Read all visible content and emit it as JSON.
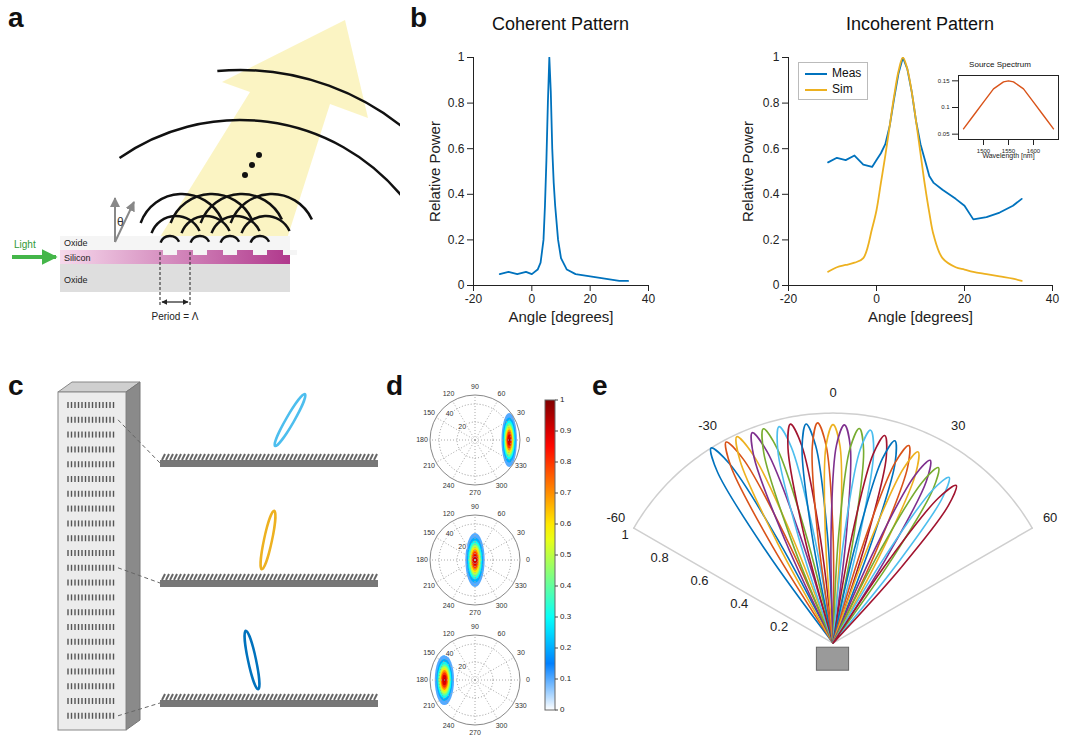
{
  "chart_data": [
    {
      "panel": "b",
      "type": "line",
      "title": "Coherent Pattern",
      "xlabel": "Angle [degrees]",
      "ylabel": "Relative Power",
      "xlim": [
        -20,
        40
      ],
      "xticks": [
        -20,
        0,
        20,
        40
      ],
      "ylim": [
        0,
        1
      ],
      "yticks": [
        0,
        0.2,
        0.4,
        0.6,
        0.8,
        1
      ],
      "x": [
        -11,
        -8,
        -5,
        -2,
        0,
        2,
        3,
        4,
        4.5,
        5,
        5.5,
        6,
        6.5,
        7,
        7.5,
        8,
        9,
        10,
        12,
        15,
        20,
        25,
        30,
        33
      ],
      "values": [
        0.05,
        0.06,
        0.05,
        0.06,
        0.05,
        0.07,
        0.1,
        0.2,
        0.35,
        0.55,
        0.8,
        1,
        0.85,
        0.6,
        0.45,
        0.35,
        0.2,
        0.12,
        0.07,
        0.05,
        0.04,
        0.03,
        0.02,
        0.02
      ],
      "color": "#0072BD"
    },
    {
      "type": "line",
      "title": "Incoherent Pattern",
      "xlabel": "Angle [degrees]",
      "ylabel": "Relative Power",
      "xlim": [
        -20,
        40
      ],
      "xticks": [
        -20,
        0,
        20,
        40
      ],
      "ylim": [
        0,
        1
      ],
      "yticks": [
        0,
        0.2,
        0.4,
        0.6,
        0.8,
        1
      ],
      "legend": "top-left",
      "x": [
        -11,
        -9,
        -7,
        -5,
        -3,
        -1,
        0,
        1,
        2,
        3,
        4,
        5,
        6,
        7,
        8,
        9,
        10,
        11,
        12,
        13,
        15,
        18,
        20,
        22,
        25,
        28,
        31,
        33
      ],
      "series": [
        {
          "name": "Meas",
          "color": "#0072BD",
          "values": [
            0.54,
            0.56,
            0.55,
            0.57,
            0.53,
            0.52,
            0.55,
            0.58,
            0.62,
            0.7,
            0.82,
            0.93,
            1,
            0.95,
            0.85,
            0.72,
            0.62,
            0.55,
            0.48,
            0.45,
            0.42,
            0.38,
            0.35,
            0.29,
            0.3,
            0.32,
            0.35,
            0.38
          ]
        },
        {
          "name": "Sim",
          "color": "#EDB120",
          "values": [
            0.06,
            0.08,
            0.09,
            0.1,
            0.12,
            0.25,
            0.33,
            0.45,
            0.57,
            0.7,
            0.83,
            0.94,
            1,
            0.95,
            0.85,
            0.72,
            0.58,
            0.44,
            0.32,
            0.22,
            0.12,
            0.08,
            0.07,
            0.06,
            0.05,
            0.04,
            0.03,
            0.02
          ]
        }
      ],
      "inset": {
        "type": "line",
        "title": "Source Spectrum",
        "xlabel": "Wavelength [nm]",
        "xlim": [
          1450,
          1650
        ],
        "xticks": [
          1500,
          1550,
          1600
        ],
        "ylim": [
          0.04,
          0.16
        ],
        "yticks": [
          0.05,
          0.1,
          0.15
        ],
        "x": [
          1460,
          1480,
          1500,
          1520,
          1540,
          1550,
          1560,
          1580,
          1600,
          1620,
          1640
        ],
        "values": [
          0.06,
          0.085,
          0.11,
          0.135,
          0.148,
          0.15,
          0.148,
          0.135,
          0.11,
          0.085,
          0.06
        ],
        "color": "#D95319"
      }
    },
    {
      "panel": "d",
      "type": "polar_heatmap",
      "rlim": [
        0,
        50
      ],
      "rticks": [
        20,
        40
      ],
      "thetaticks": [
        0,
        30,
        60,
        90,
        120,
        150,
        180,
        210,
        240,
        270,
        300,
        330
      ],
      "colorbar": {
        "range": [
          0,
          1
        ],
        "ticks": [
          0,
          0.1,
          0.2,
          0.3,
          0.4,
          0.5,
          0.6,
          0.7,
          0.8,
          0.9,
          1
        ]
      },
      "plots": [
        {
          "peak_theta": 0,
          "peak_r": 38,
          "peak_value": 1,
          "half_width_x": 4,
          "half_width_y": 14
        },
        {
          "peak_theta": 0,
          "peak_r": 0,
          "peak_value": 1,
          "half_width_x": 5,
          "half_width_y": 14
        },
        {
          "peak_theta": 180,
          "peak_r": 34,
          "peak_value": 1,
          "half_width_x": 5,
          "half_width_y": 13
        }
      ]
    },
    {
      "panel": "e",
      "type": "polar_line",
      "thetalim": [
        -60,
        60
      ],
      "thetaticks": [
        -60,
        -30,
        0,
        30,
        60
      ],
      "rlim": [
        0,
        1
      ],
      "rticks": [
        0.2,
        0.4,
        0.6,
        0.8,
        1
      ],
      "series": [
        {
          "color": "#0072BD",
          "theta": [
            -38,
            -36,
            -34,
            -32,
            -30,
            -28,
            -26
          ],
          "r": [
            0,
            0.5,
            0.9,
            1,
            0.9,
            0.5,
            0
          ]
        },
        {
          "color": "#D95319",
          "theta": [
            -34,
            -32,
            -30,
            -28,
            -26,
            -24,
            -22
          ],
          "r": [
            0,
            0.5,
            0.89,
            0.99,
            0.89,
            0.5,
            0
          ]
        },
        {
          "color": "#EDB120",
          "theta": [
            -31,
            -29,
            -27,
            -25,
            -23,
            -21,
            -19
          ],
          "r": [
            0,
            0.5,
            0.89,
            0.99,
            0.89,
            0.5,
            0
          ]
        },
        {
          "color": "#7E2F8E",
          "theta": [
            -27,
            -25,
            -23,
            -21,
            -19,
            -17,
            -15
          ],
          "r": [
            0,
            0.49,
            0.88,
            0.98,
            0.88,
            0.49,
            0
          ]
        },
        {
          "color": "#77AC30",
          "theta": [
            -24,
            -22,
            -20,
            -18,
            -16,
            -14,
            -12
          ],
          "r": [
            0,
            0.49,
            0.88,
            0.98,
            0.88,
            0.49,
            0
          ]
        },
        {
          "color": "#4DBEEE",
          "theta": [
            -20,
            -18,
            -16,
            -14,
            -12,
            -10,
            -8
          ],
          "r": [
            0,
            0.49,
            0.87,
            0.97,
            0.87,
            0.49,
            0
          ]
        },
        {
          "color": "#A2142F",
          "theta": [
            -17,
            -15,
            -13,
            -11,
            -9,
            -7,
            -5
          ],
          "r": [
            0,
            0.49,
            0.87,
            0.97,
            0.87,
            0.49,
            0
          ]
        },
        {
          "color": "#0072BD",
          "theta": [
            -13,
            -11,
            -9,
            -7,
            -5,
            -3,
            -1
          ],
          "r": [
            0,
            0.48,
            0.86,
            0.96,
            0.86,
            0.48,
            0
          ]
        },
        {
          "color": "#D95319",
          "theta": [
            -10,
            -8,
            -6,
            -4,
            -2,
            0,
            2
          ],
          "r": [
            0,
            0.48,
            0.86,
            0.96,
            0.86,
            0.48,
            0
          ]
        },
        {
          "color": "#EDB120",
          "theta": [
            -6,
            -4,
            -2,
            0,
            2,
            4,
            6
          ],
          "r": [
            0,
            0.48,
            0.86,
            0.95,
            0.86,
            0.48,
            0
          ]
        },
        {
          "color": "#7E2F8E",
          "theta": [
            -3,
            -1,
            1,
            3,
            5,
            7,
            9
          ],
          "r": [
            0,
            0.48,
            0.86,
            0.95,
            0.86,
            0.48,
            0
          ]
        },
        {
          "color": "#77AC30",
          "theta": [
            1,
            3,
            5,
            7,
            9,
            11,
            13
          ],
          "r": [
            0,
            0.47,
            0.85,
            0.94,
            0.85,
            0.47,
            0
          ]
        },
        {
          "color": "#4DBEEE",
          "theta": [
            4,
            6,
            8,
            10,
            12,
            14,
            16
          ],
          "r": [
            0,
            0.47,
            0.85,
            0.94,
            0.85,
            0.47,
            0
          ]
        },
        {
          "color": "#A2142F",
          "theta": [
            8,
            10,
            12,
            14,
            16,
            18,
            20
          ],
          "r": [
            0,
            0.47,
            0.84,
            0.93,
            0.84,
            0.47,
            0
          ]
        },
        {
          "color": "#0072BD",
          "theta": [
            11,
            13,
            15,
            17,
            19,
            21,
            23
          ],
          "r": [
            0,
            0.46,
            0.83,
            0.92,
            0.83,
            0.46,
            0
          ]
        },
        {
          "color": "#D95319",
          "theta": [
            15,
            17,
            19,
            21,
            23,
            25,
            27
          ],
          "r": [
            0,
            0.46,
            0.83,
            0.92,
            0.83,
            0.46,
            0
          ]
        },
        {
          "color": "#EDB120",
          "theta": [
            18,
            20,
            22,
            24,
            26,
            28,
            30
          ],
          "r": [
            0,
            0.46,
            0.82,
            0.91,
            0.82,
            0.46,
            0
          ]
        },
        {
          "color": "#7E2F8E",
          "theta": [
            22,
            24,
            26,
            28,
            30,
            32,
            34
          ],
          "r": [
            0,
            0.45,
            0.81,
            0.9,
            0.81,
            0.45,
            0
          ]
        },
        {
          "color": "#77AC30",
          "theta": [
            25,
            27,
            29,
            31,
            33,
            35,
            37
          ],
          "r": [
            0,
            0.45,
            0.8,
            0.89,
            0.8,
            0.45,
            0
          ]
        },
        {
          "color": "#4DBEEE",
          "theta": [
            29,
            31,
            33,
            35,
            37,
            39,
            41
          ],
          "r": [
            0,
            0.44,
            0.79,
            0.88,
            0.79,
            0.44,
            0
          ]
        },
        {
          "color": "#A2142F",
          "theta": [
            32,
            34,
            36,
            38,
            40,
            42,
            44
          ],
          "r": [
            0,
            0.44,
            0.78,
            0.87,
            0.78,
            0.44,
            0
          ]
        }
      ]
    }
  ],
  "diagrams": [
    {
      "panel": "a",
      "labels": {
        "light": "Light",
        "top_cladding": "Oxide",
        "core": "Silicon",
        "bottom_cladding": "Oxide",
        "period": "Period = Λ",
        "angle": "θ"
      }
    },
    {
      "panel": "c",
      "colors": [
        "#4DBEEE",
        "#EDB120",
        "#0072BD"
      ]
    }
  ]
}
